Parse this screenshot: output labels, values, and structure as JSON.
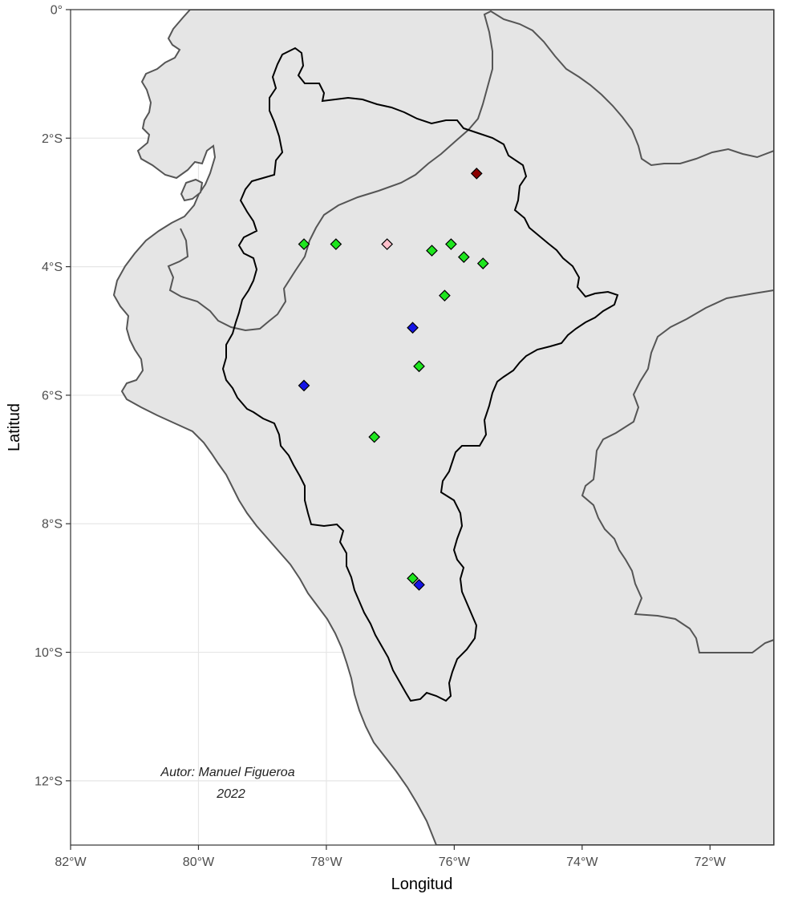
{
  "chart_data": {
    "type": "scatter",
    "title": "",
    "xlabel": "Longitud",
    "ylabel": "Latitud",
    "xlim": [
      -82,
      -71
    ],
    "ylim": [
      -13,
      0
    ],
    "grid": true,
    "x_ticks": [
      {
        "value": -82,
        "label": "82°W"
      },
      {
        "value": -80,
        "label": "80°W"
      },
      {
        "value": -78,
        "label": "78°W"
      },
      {
        "value": -76,
        "label": "76°W"
      },
      {
        "value": -74,
        "label": "74°W"
      },
      {
        "value": -72,
        "label": "72°W"
      }
    ],
    "y_ticks": [
      {
        "value": 0,
        "label": "0°"
      },
      {
        "value": -2,
        "label": "2°S"
      },
      {
        "value": -4,
        "label": "4°S"
      },
      {
        "value": -6,
        "label": "6°S"
      },
      {
        "value": -8,
        "label": "8°S"
      },
      {
        "value": -10,
        "label": "10°S"
      },
      {
        "value": -12,
        "label": "12°S"
      }
    ],
    "annotation": {
      "line1": "Autor: Manuel Figueroa",
      "line2": "2022"
    },
    "colors": {
      "panel": "#ffffff",
      "land": "#e5e5e5",
      "border": "#555555",
      "basin": "#000000",
      "grid": "#e6e6e6",
      "green": "#1ee61e",
      "blue": "#1414e6",
      "darkred": "#8b0000",
      "pink": "#ffc0cb"
    },
    "points": [
      {
        "lon": -78.35,
        "lat": -3.65,
        "color": "green"
      },
      {
        "lon": -77.85,
        "lat": -3.65,
        "color": "green"
      },
      {
        "lon": -77.05,
        "lat": -3.65,
        "color": "pink"
      },
      {
        "lon": -76.35,
        "lat": -3.75,
        "color": "green"
      },
      {
        "lon": -76.05,
        "lat": -3.65,
        "color": "green"
      },
      {
        "lon": -75.85,
        "lat": -3.85,
        "color": "green"
      },
      {
        "lon": -75.55,
        "lat": -3.95,
        "color": "green"
      },
      {
        "lon": -75.65,
        "lat": -2.55,
        "color": "darkred"
      },
      {
        "lon": -76.15,
        "lat": -4.45,
        "color": "green"
      },
      {
        "lon": -76.65,
        "lat": -4.95,
        "color": "blue"
      },
      {
        "lon": -76.55,
        "lat": -5.55,
        "color": "green"
      },
      {
        "lon": -78.35,
        "lat": -5.85,
        "color": "blue"
      },
      {
        "lon": -77.25,
        "lat": -6.65,
        "color": "green"
      },
      {
        "lon": -76.65,
        "lat": -8.85,
        "color": "green"
      },
      {
        "lon": -76.55,
        "lat": -8.95,
        "color": "blue"
      }
    ]
  }
}
